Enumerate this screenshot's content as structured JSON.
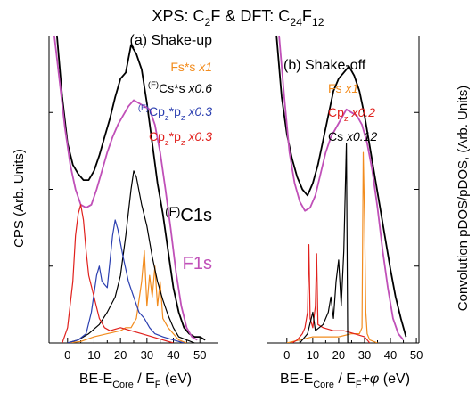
{
  "title_parts": [
    {
      "t": "XPS: C"
    },
    {
      "t": "2",
      "s": "sub"
    },
    {
      "t": "F & DFT: C"
    },
    {
      "t": "24",
      "s": "sub"
    },
    {
      "t": "F"
    },
    {
      "t": "12",
      "s": "sub"
    }
  ],
  "chart_data": [
    {
      "type": "line",
      "panel_title": "(a) Shake-up",
      "ylabel": "CPS (Arb. Units)",
      "y_axis_side": "left",
      "xlabel_parts": [
        {
          "t": "BE-E"
        },
        {
          "t": "Core",
          "s": "sub"
        },
        {
          "t": " / E"
        },
        {
          "t": "F",
          "s": "sub"
        },
        {
          "t": " (eV)"
        }
      ],
      "xlim": [
        -7,
        57
      ],
      "xticks": [
        0,
        10,
        20,
        30,
        40,
        50
      ],
      "ylim": [
        0,
        100
      ],
      "series": [
        {
          "name": [
            {
              "t": "(F)",
              "s": "sup"
            },
            {
              "t": "C1s"
            }
          ],
          "color": "#000000",
          "width": 1.8,
          "x": [
            -4,
            -2,
            0,
            2,
            4,
            6,
            8,
            10,
            12,
            14,
            16,
            18,
            20,
            22,
            24,
            26,
            28,
            30,
            32,
            34,
            36,
            38,
            40,
            42,
            44,
            46,
            48,
            50,
            52
          ],
          "values": [
            100,
            80,
            65,
            58,
            55,
            53,
            53,
            56,
            61,
            67,
            73,
            80,
            86,
            88,
            97,
            94,
            89,
            78,
            65,
            52,
            42,
            30,
            18,
            10,
            5,
            3,
            2,
            2,
            1
          ]
        },
        {
          "name": [
            {
              "t": "F1s"
            }
          ],
          "color": "#c050b8",
          "width": 1.8,
          "x": [
            -5,
            -3,
            -1,
            1,
            3,
            5,
            7,
            9,
            11,
            13,
            15,
            17,
            19,
            21,
            23,
            25,
            27,
            29,
            31,
            33,
            35,
            37,
            39,
            41,
            43,
            45,
            47,
            49
          ],
          "values": [
            100,
            85,
            70,
            58,
            50,
            45,
            44,
            45,
            50,
            56,
            62,
            67,
            71,
            74,
            77,
            79,
            78,
            77,
            76,
            71,
            62,
            50,
            37,
            23,
            12,
            5,
            2,
            1
          ]
        },
        {
          "name": [
            {
              "t": "Fs*s "
            },
            {
              "t": "x1",
              "s": "i"
            }
          ],
          "color": "#f28c1e",
          "width": 1.2,
          "x": [
            0,
            5,
            10,
            15,
            20,
            22,
            24,
            26,
            28,
            29,
            30,
            31,
            32,
            33,
            34,
            35,
            36,
            38,
            40,
            42,
            45
          ],
          "values": [
            0,
            0.5,
            2,
            3,
            4,
            5,
            5,
            8,
            20,
            30,
            12,
            22,
            15,
            25,
            12,
            20,
            8,
            5,
            3,
            1,
            0
          ]
        },
        {
          "name": [
            {
              "t": "(F)",
              "s": "sup"
            },
            {
              "t": "Cs*s "
            },
            {
              "t": "x0.6",
              "s": "i"
            }
          ],
          "color": "#000000",
          "width": 1.2,
          "x": [
            0,
            4,
            8,
            12,
            15,
            18,
            20,
            22,
            24,
            25,
            26,
            28,
            30,
            32,
            34,
            36,
            38,
            40,
            42,
            45,
            48
          ],
          "values": [
            0,
            1,
            3,
            6,
            10,
            15,
            22,
            35,
            50,
            56,
            54,
            45,
            38,
            28,
            20,
            14,
            9,
            5,
            2,
            1,
            0
          ]
        },
        {
          "name": [
            {
              "t": "(F)",
              "s": "sup"
            },
            {
              "t": "Cp"
            },
            {
              "t": "z",
              "s": "sub"
            },
            {
              "t": "*p"
            },
            {
              "t": "z",
              "s": "sub"
            },
            {
              "t": " "
            },
            {
              "t": "x0.3",
              "s": "i"
            }
          ],
          "color": "#2b3fb0",
          "width": 1.2,
          "x": [
            0,
            4,
            7,
            9,
            11,
            12,
            13,
            15,
            17,
            18,
            19,
            21,
            23,
            25,
            27,
            29,
            31,
            33,
            36,
            40,
            44
          ],
          "values": [
            0,
            1,
            3,
            10,
            22,
            25,
            20,
            18,
            35,
            40,
            37,
            28,
            20,
            15,
            10,
            8,
            5,
            3,
            2,
            1,
            0
          ]
        },
        {
          "name": [
            {
              "t": "Cp"
            },
            {
              "t": "z",
              "s": "sub"
            },
            {
              "t": "*p"
            },
            {
              "t": "z",
              "s": "sub"
            },
            {
              "t": " "
            },
            {
              "t": "x0.3",
              "s": "i"
            }
          ],
          "color": "#e0201c",
          "width": 1.2,
          "x": [
            -2,
            0,
            2,
            3,
            4,
            5,
            6,
            7,
            8,
            10,
            12,
            14,
            16,
            20,
            24,
            28,
            32,
            36,
            40
          ],
          "values": [
            0,
            5,
            20,
            35,
            42,
            45,
            40,
            30,
            22,
            15,
            8,
            5,
            4,
            5,
            4,
            3,
            2,
            1,
            0
          ]
        }
      ]
    },
    {
      "type": "line",
      "panel_title": "(b) Shake-off",
      "ylabel": "Convolution pDOS/pDOS, (Arb. Units)",
      "y_axis_side": "right",
      "xlabel_parts": [
        {
          "t": "BE-E"
        },
        {
          "t": "Core",
          "s": "sub"
        },
        {
          "t": " / E"
        },
        {
          "t": "F",
          "s": "sub"
        },
        {
          "t": "+"
        },
        {
          "t": "φ",
          "s": "i"
        },
        {
          "t": " (eV)"
        }
      ],
      "xlim": [
        -7.5,
        51
      ],
      "xticks": [
        0,
        10,
        20,
        30,
        40,
        50
      ],
      "ylim": [
        0,
        100
      ],
      "series": [
        {
          "color": "#000000",
          "width": 1.8,
          "x": [
            -4,
            -2,
            0,
            2,
            4,
            6,
            8,
            10,
            12,
            14,
            16,
            18,
            20,
            22,
            24,
            26,
            28,
            30,
            32,
            34,
            36,
            38,
            40,
            42,
            44,
            46
          ],
          "values": [
            100,
            80,
            68,
            60,
            54,
            50,
            48,
            52,
            58,
            66,
            74,
            82,
            86,
            88,
            90,
            87,
            82,
            74,
            64,
            54,
            44,
            34,
            24,
            15,
            8,
            2
          ]
        },
        {
          "color": "#c050b8",
          "width": 1.8,
          "x": [
            -3,
            -1,
            1,
            3,
            5,
            7,
            9,
            11,
            13,
            15,
            17,
            19,
            21,
            23,
            25,
            27,
            29,
            31,
            33,
            35,
            37,
            39,
            41,
            43,
            45
          ],
          "values": [
            100,
            80,
            62,
            52,
            46,
            43,
            44,
            48,
            55,
            62,
            67,
            70,
            73,
            76,
            75,
            74,
            71,
            65,
            56,
            44,
            30,
            18,
            8,
            3,
            1
          ]
        },
        {
          "name": [
            {
              "t": "Fs "
            },
            {
              "t": "x1",
              "s": "i"
            }
          ],
          "color": "#f28c1e",
          "width": 1.2,
          "x": [
            0,
            5,
            10,
            15,
            20,
            25,
            28,
            29,
            29.5,
            30,
            30.5,
            31,
            32,
            35
          ],
          "values": [
            0,
            1,
            2,
            2,
            2,
            3,
            3,
            5,
            62,
            40,
            10,
            3,
            1,
            0
          ]
        },
        {
          "name": [
            {
              "t": "Cp"
            },
            {
              "t": "z",
              "s": "sub"
            },
            {
              "t": " "
            },
            {
              "t": "x0.2",
              "s": "i"
            }
          ],
          "color": "#e0201c",
          "width": 1.2,
          "x": [
            2,
            4,
            6,
            7,
            8,
            8.5,
            9,
            10,
            11,
            11.5,
            12,
            14,
            18,
            22,
            26,
            30,
            32
          ],
          "values": [
            0,
            1,
            3,
            5,
            10,
            32,
            8,
            5,
            12,
            29,
            6,
            5,
            4,
            4,
            3,
            2,
            0
          ]
        },
        {
          "name": [
            {
              "t": "Cs "
            },
            {
              "t": "x0.12",
              "s": "i"
            }
          ],
          "color": "#000000",
          "width": 1.2,
          "x": [
            5,
            8,
            10,
            11,
            14,
            16,
            17,
            18,
            19,
            20,
            21,
            22,
            23,
            23.5,
            30
          ],
          "values": [
            0,
            3,
            10,
            4,
            6,
            10,
            15,
            8,
            20,
            27,
            12,
            30,
            65,
            0,
            0
          ]
        }
      ]
    }
  ]
}
